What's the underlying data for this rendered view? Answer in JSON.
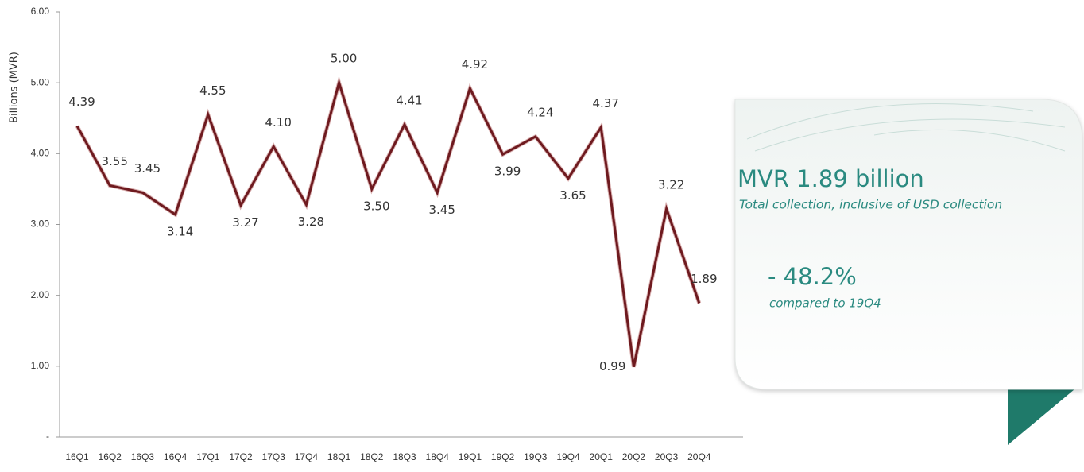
{
  "chart_data": {
    "type": "line",
    "y_label": "Billions (MVR)",
    "categories": [
      "16Q1",
      "16Q2",
      "16Q3",
      "16Q4",
      "17Q1",
      "17Q2",
      "17Q3",
      "17Q4",
      "18Q1",
      "18Q2",
      "18Q3",
      "18Q4",
      "19Q1",
      "19Q2",
      "19Q3",
      "19Q4",
      "20Q1",
      "20Q2",
      "20Q3",
      "20Q4"
    ],
    "series": [
      {
        "color": "#6e1a1f",
        "values": [
          4.39,
          3.55,
          3.45,
          3.14,
          4.55,
          3.27,
          4.1,
          3.28,
          5.0,
          3.5,
          4.41,
          3.45,
          4.92,
          3.99,
          4.24,
          3.65,
          4.37,
          0.99,
          3.22,
          1.89
        ],
        "value_labels": [
          "4.39",
          "3.55",
          "3.45",
          "3.14",
          "4.55",
          "3.27",
          "4.10",
          "3.28",
          "5.00",
          "3.50",
          "4.41",
          "3.45",
          "4.92",
          "3.99",
          "4.24",
          "3.65",
          "4.37",
          "0.99",
          "3.22",
          "1.89"
        ]
      }
    ],
    "ylim": [
      0,
      6
    ],
    "yticks": [
      {
        "value": 0,
        "label": "-"
      },
      {
        "value": 1,
        "label": "1.00"
      },
      {
        "value": 2,
        "label": "2.00"
      },
      {
        "value": 3,
        "label": "3.00"
      },
      {
        "value": 4,
        "label": "4.00"
      },
      {
        "value": 5,
        "label": "5.00"
      },
      {
        "value": 6,
        "label": "6.00"
      }
    ],
    "grid": false
  },
  "callout": {
    "headline": "MVR 1.89 billion",
    "headline_note": "Total collection, inclusive of USD collection",
    "change": "- 48.2%",
    "change_note": "compared to 19Q4"
  }
}
